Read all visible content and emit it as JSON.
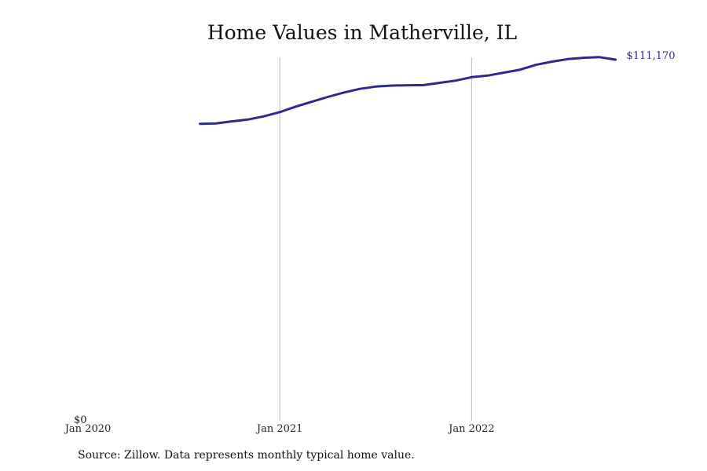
{
  "chart_data": {
    "type": "line",
    "title": "Home Values in Matherville, IL",
    "source": "Source: Zillow. Data represents monthly typical home value.",
    "xlabel": "",
    "ylabel": "",
    "x_ticks": [
      "Jan 2020",
      "Jan 2021",
      "Jan 2022"
    ],
    "y_ticks": [
      "$0"
    ],
    "ylim": [
      0,
      111170
    ],
    "xlim": [
      "2020-01",
      "2022-12"
    ],
    "grid": "vertical",
    "line_color": "#2e2a8c",
    "end_label": "$111,170",
    "series": [
      {
        "x": [
          "2020-08",
          "2020-09",
          "2020-10",
          "2020-11",
          "2020-12",
          "2021-01",
          "2021-02",
          "2021-03",
          "2021-04",
          "2021-05",
          "2021-06",
          "2021-07",
          "2021-08",
          "2021-09",
          "2021-10",
          "2021-11",
          "2021-12",
          "2022-01",
          "2022-02",
          "2022-03",
          "2022-04",
          "2022-05",
          "2022-06",
          "2022-07",
          "2022-08",
          "2022-09",
          "2022-10"
        ],
        "values": [
          91350,
          91450,
          92100,
          92650,
          93650,
          94950,
          96650,
          98150,
          99650,
          101000,
          102150,
          102850,
          103150,
          103250,
          103300,
          104000,
          104700,
          105750,
          106250,
          107150,
          108050,
          109550,
          110550,
          111350,
          111750,
          111950,
          111170
        ]
      }
    ]
  }
}
